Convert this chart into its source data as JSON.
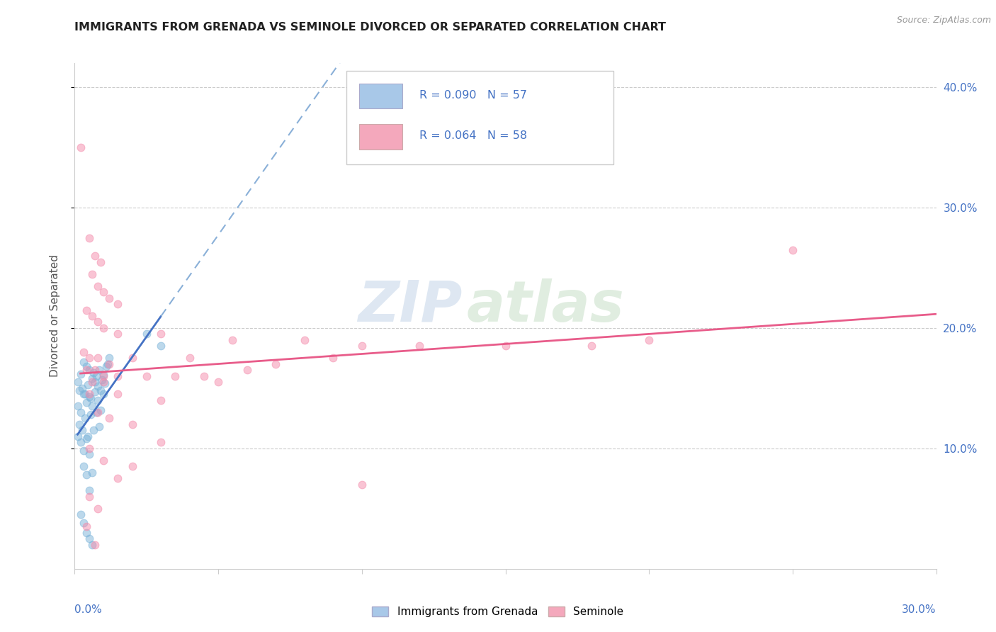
{
  "title": "IMMIGRANTS FROM GRENADA VS SEMINOLE DIVORCED OR SEPARATED CORRELATION CHART",
  "source_text": "Source: ZipAtlas.com",
  "ylabel": "Divorced or Separated",
  "xlim": [
    0.0,
    30.0
  ],
  "ylim": [
    0.0,
    42.0
  ],
  "yticks": [
    10.0,
    20.0,
    30.0,
    40.0
  ],
  "watermark": "ZIPatlas",
  "blue_color": "#7ab3d9",
  "pink_color": "#f48aaa",
  "blue_scatter": [
    [
      0.1,
      15.5
    ],
    [
      0.15,
      14.8
    ],
    [
      0.2,
      16.2
    ],
    [
      0.25,
      15.0
    ],
    [
      0.3,
      17.2
    ],
    [
      0.35,
      14.5
    ],
    [
      0.4,
      16.8
    ],
    [
      0.45,
      15.3
    ],
    [
      0.5,
      16.5
    ],
    [
      0.55,
      14.2
    ],
    [
      0.6,
      15.8
    ],
    [
      0.65,
      16.3
    ],
    [
      0.7,
      15.5
    ],
    [
      0.75,
      16.0
    ],
    [
      0.8,
      15.2
    ],
    [
      0.85,
      16.5
    ],
    [
      0.9,
      14.8
    ],
    [
      0.95,
      15.7
    ],
    [
      1.0,
      16.1
    ],
    [
      1.05,
      15.4
    ],
    [
      1.1,
      16.8
    ],
    [
      1.15,
      17.0
    ],
    [
      1.2,
      17.5
    ],
    [
      0.1,
      13.5
    ],
    [
      0.2,
      13.0
    ],
    [
      0.3,
      14.5
    ],
    [
      0.4,
      13.8
    ],
    [
      0.5,
      14.3
    ],
    [
      0.6,
      13.5
    ],
    [
      0.7,
      14.7
    ],
    [
      0.8,
      14.0
    ],
    [
      0.9,
      13.2
    ],
    [
      1.0,
      14.5
    ],
    [
      0.15,
      12.0
    ],
    [
      0.25,
      11.5
    ],
    [
      0.35,
      12.5
    ],
    [
      0.45,
      11.0
    ],
    [
      0.55,
      12.8
    ],
    [
      0.65,
      11.5
    ],
    [
      0.75,
      13.0
    ],
    [
      0.85,
      11.8
    ],
    [
      0.1,
      11.0
    ],
    [
      0.2,
      10.5
    ],
    [
      0.3,
      9.8
    ],
    [
      0.4,
      10.8
    ],
    [
      0.5,
      9.5
    ],
    [
      0.3,
      8.5
    ],
    [
      0.4,
      7.8
    ],
    [
      0.5,
      6.5
    ],
    [
      0.6,
      8.0
    ],
    [
      2.5,
      19.5
    ],
    [
      3.0,
      18.5
    ],
    [
      0.2,
      4.5
    ],
    [
      0.3,
      3.8
    ],
    [
      0.4,
      3.0
    ],
    [
      0.5,
      2.5
    ],
    [
      0.6,
      2.0
    ]
  ],
  "pink_scatter": [
    [
      0.2,
      35.0
    ],
    [
      0.5,
      27.5
    ],
    [
      0.7,
      26.0
    ],
    [
      0.9,
      25.5
    ],
    [
      0.6,
      24.5
    ],
    [
      0.8,
      23.5
    ],
    [
      1.0,
      23.0
    ],
    [
      1.2,
      22.5
    ],
    [
      1.5,
      22.0
    ],
    [
      0.4,
      21.5
    ],
    [
      0.6,
      21.0
    ],
    [
      0.8,
      20.5
    ],
    [
      1.0,
      20.0
    ],
    [
      1.5,
      19.5
    ],
    [
      3.0,
      19.5
    ],
    [
      5.5,
      19.0
    ],
    [
      8.0,
      19.0
    ],
    [
      10.0,
      18.5
    ],
    [
      12.0,
      18.5
    ],
    [
      15.0,
      18.5
    ],
    [
      18.0,
      18.5
    ],
    [
      20.0,
      19.0
    ],
    [
      0.3,
      18.0
    ],
    [
      0.5,
      17.5
    ],
    [
      0.8,
      17.5
    ],
    [
      1.2,
      17.0
    ],
    [
      2.0,
      17.5
    ],
    [
      4.0,
      17.5
    ],
    [
      7.0,
      17.0
    ],
    [
      9.0,
      17.5
    ],
    [
      0.4,
      16.5
    ],
    [
      0.7,
      16.5
    ],
    [
      1.0,
      16.0
    ],
    [
      1.5,
      16.0
    ],
    [
      2.5,
      16.0
    ],
    [
      3.5,
      16.0
    ],
    [
      4.5,
      16.0
    ],
    [
      6.0,
      16.5
    ],
    [
      0.6,
      15.5
    ],
    [
      1.0,
      15.5
    ],
    [
      5.0,
      15.5
    ],
    [
      0.5,
      14.5
    ],
    [
      1.5,
      14.5
    ],
    [
      3.0,
      14.0
    ],
    [
      0.8,
      13.0
    ],
    [
      1.2,
      12.5
    ],
    [
      2.0,
      12.0
    ],
    [
      3.0,
      10.5
    ],
    [
      0.5,
      10.0
    ],
    [
      1.0,
      9.0
    ],
    [
      2.0,
      8.5
    ],
    [
      1.5,
      7.5
    ],
    [
      0.5,
      6.0
    ],
    [
      0.8,
      5.0
    ],
    [
      25.0,
      26.5
    ],
    [
      0.4,
      3.5
    ],
    [
      0.7,
      2.0
    ],
    [
      10.0,
      7.0
    ]
  ]
}
